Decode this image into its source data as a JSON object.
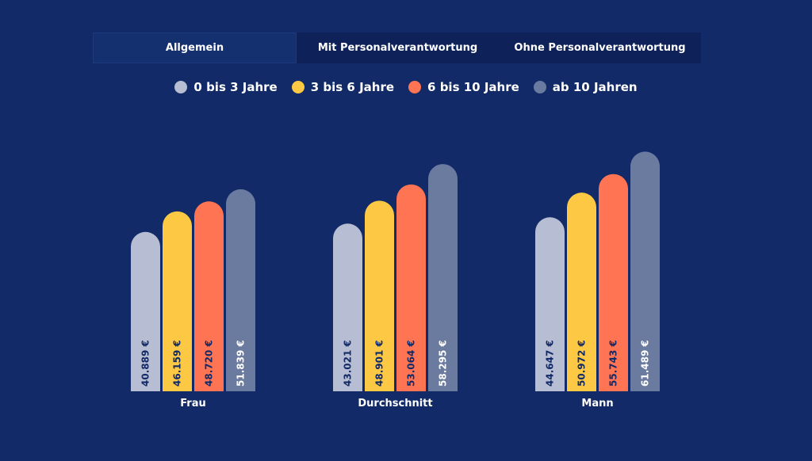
{
  "tabs": [
    {
      "label": "Allgemein",
      "active": true
    },
    {
      "label": "Mit Personalverantwortung",
      "active": false
    },
    {
      "label": "Ohne Personalverantwortung",
      "active": false
    }
  ],
  "legend": [
    {
      "label": "0 bis 3 Jahre",
      "color": "#b7bdd2"
    },
    {
      "label": "3 bis 6 Jahre",
      "color": "#fdc843"
    },
    {
      "label": "6 bis 10 Jahre",
      "color": "#ff7554"
    },
    {
      "label": "ab 10 Jahren",
      "color": "#6b7ba0"
    }
  ],
  "chart_data": {
    "type": "bar",
    "categories": [
      "Frau",
      "Durchschnitt",
      "Mann"
    ],
    "series": [
      {
        "name": "0 bis 3 Jahre",
        "color": "#b7bdd2",
        "values": [
          40889,
          43021,
          44647
        ],
        "labels": [
          "40.889 €",
          "43.021 €",
          "44.647 €"
        ],
        "label_color": "#122a67"
      },
      {
        "name": "3 bis 6 Jahre",
        "color": "#fdc843",
        "values": [
          46159,
          48901,
          50972
        ],
        "labels": [
          "46.159 €",
          "48.901 €",
          "50.972 €"
        ],
        "label_color": "#122a67"
      },
      {
        "name": "6 bis 10 Jahre",
        "color": "#ff7554",
        "values": [
          48720,
          53064,
          55743
        ],
        "labels": [
          "48.720 €",
          "53.064 €",
          "55.743 €"
        ],
        "label_color": "#122a67"
      },
      {
        "name": "ab 10 Jahren",
        "color": "#6b7ba0",
        "values": [
          51839,
          58295,
          61489
        ],
        "labels": [
          "51.839 €",
          "58.295 €",
          "61.489 €"
        ],
        "label_color": "#ffffff"
      }
    ],
    "ylim": [
      0,
      63000
    ]
  }
}
